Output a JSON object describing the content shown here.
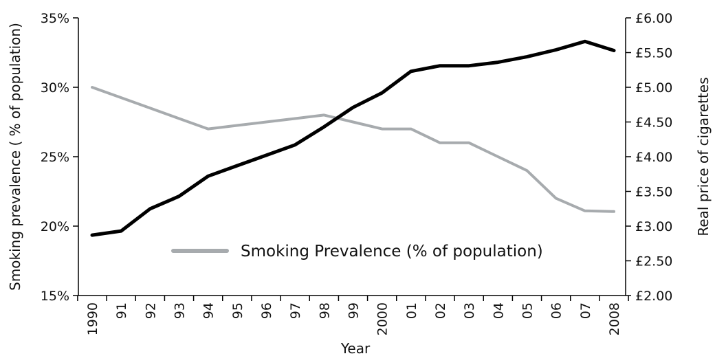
{
  "chart_data": {
    "type": "line",
    "x": [
      "1990",
      "91",
      "92",
      "93",
      "94",
      "95",
      "96",
      "97",
      "98",
      "99",
      "2000",
      "01",
      "02",
      "03",
      "04",
      "05",
      "06",
      "07",
      "2008"
    ],
    "xlabel": "Year",
    "ylabel_left": "Smoking prevalence ( % of population)",
    "ylabel_right": "Real price of cigarettes",
    "left_axis": {
      "ticks": [
        "15%",
        "20%",
        "25%",
        "30%",
        "35%"
      ],
      "range": [
        15,
        35
      ]
    },
    "right_axis": {
      "ticks": [
        "£2.00",
        "£2.50",
        "£3.00",
        "£3.50",
        "£4.00",
        "£4.50",
        "£5.00",
        "£5.50",
        "£6.00"
      ],
      "range": [
        2.0,
        6.0
      ]
    },
    "grid": false,
    "legend": {
      "position": "center-bottom"
    },
    "series": [
      {
        "name": "Smoking Prevalence (% of population)",
        "axis": "left",
        "color": "#a7abae",
        "values": [
          30,
          29.25,
          28.5,
          27.75,
          27,
          27.25,
          27.5,
          27.75,
          28,
          27.5,
          27,
          27,
          26,
          26,
          25,
          24,
          22,
          21.1,
          21.05
        ]
      },
      {
        "name": "",
        "axis": "right",
        "color": "#000000",
        "values": [
          2.87,
          2.93,
          3.25,
          3.43,
          3.72,
          3.87,
          4.02,
          4.17,
          4.43,
          4.71,
          4.92,
          5.23,
          5.31,
          5.31,
          5.36,
          5.44,
          5.54,
          5.66,
          5.53
        ]
      }
    ]
  }
}
